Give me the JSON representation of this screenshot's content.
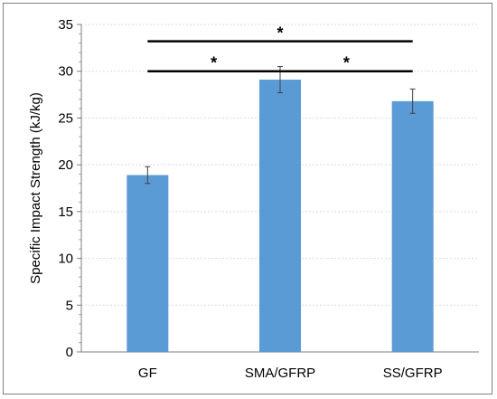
{
  "chart_data": {
    "type": "bar",
    "title": "",
    "xlabel": "",
    "ylabel": "Specific Impact Strength (kJ/kg)",
    "ylim": [
      0,
      35
    ],
    "yticks": [
      "0",
      "5",
      "10",
      "15",
      "20",
      "25",
      "30",
      "35"
    ],
    "categories": [
      "GF",
      "SMA/GFRP",
      "SS/GFRP"
    ],
    "values": [
      18.9,
      29.1,
      26.8
    ],
    "errors": [
      0.9,
      1.4,
      1.3
    ],
    "bar_color": "#5b9bd5",
    "grid": true,
    "significance": [
      {
        "from": "GF",
        "to": "SS/GFRP",
        "y": 33.2,
        "label": "*"
      },
      {
        "from": "GF",
        "to": "SMA/GFRP",
        "y": 30.0,
        "label": "*"
      },
      {
        "from": "SMA/GFRP",
        "to": "SS/GFRP",
        "y": 30.0,
        "label": "*"
      }
    ]
  }
}
